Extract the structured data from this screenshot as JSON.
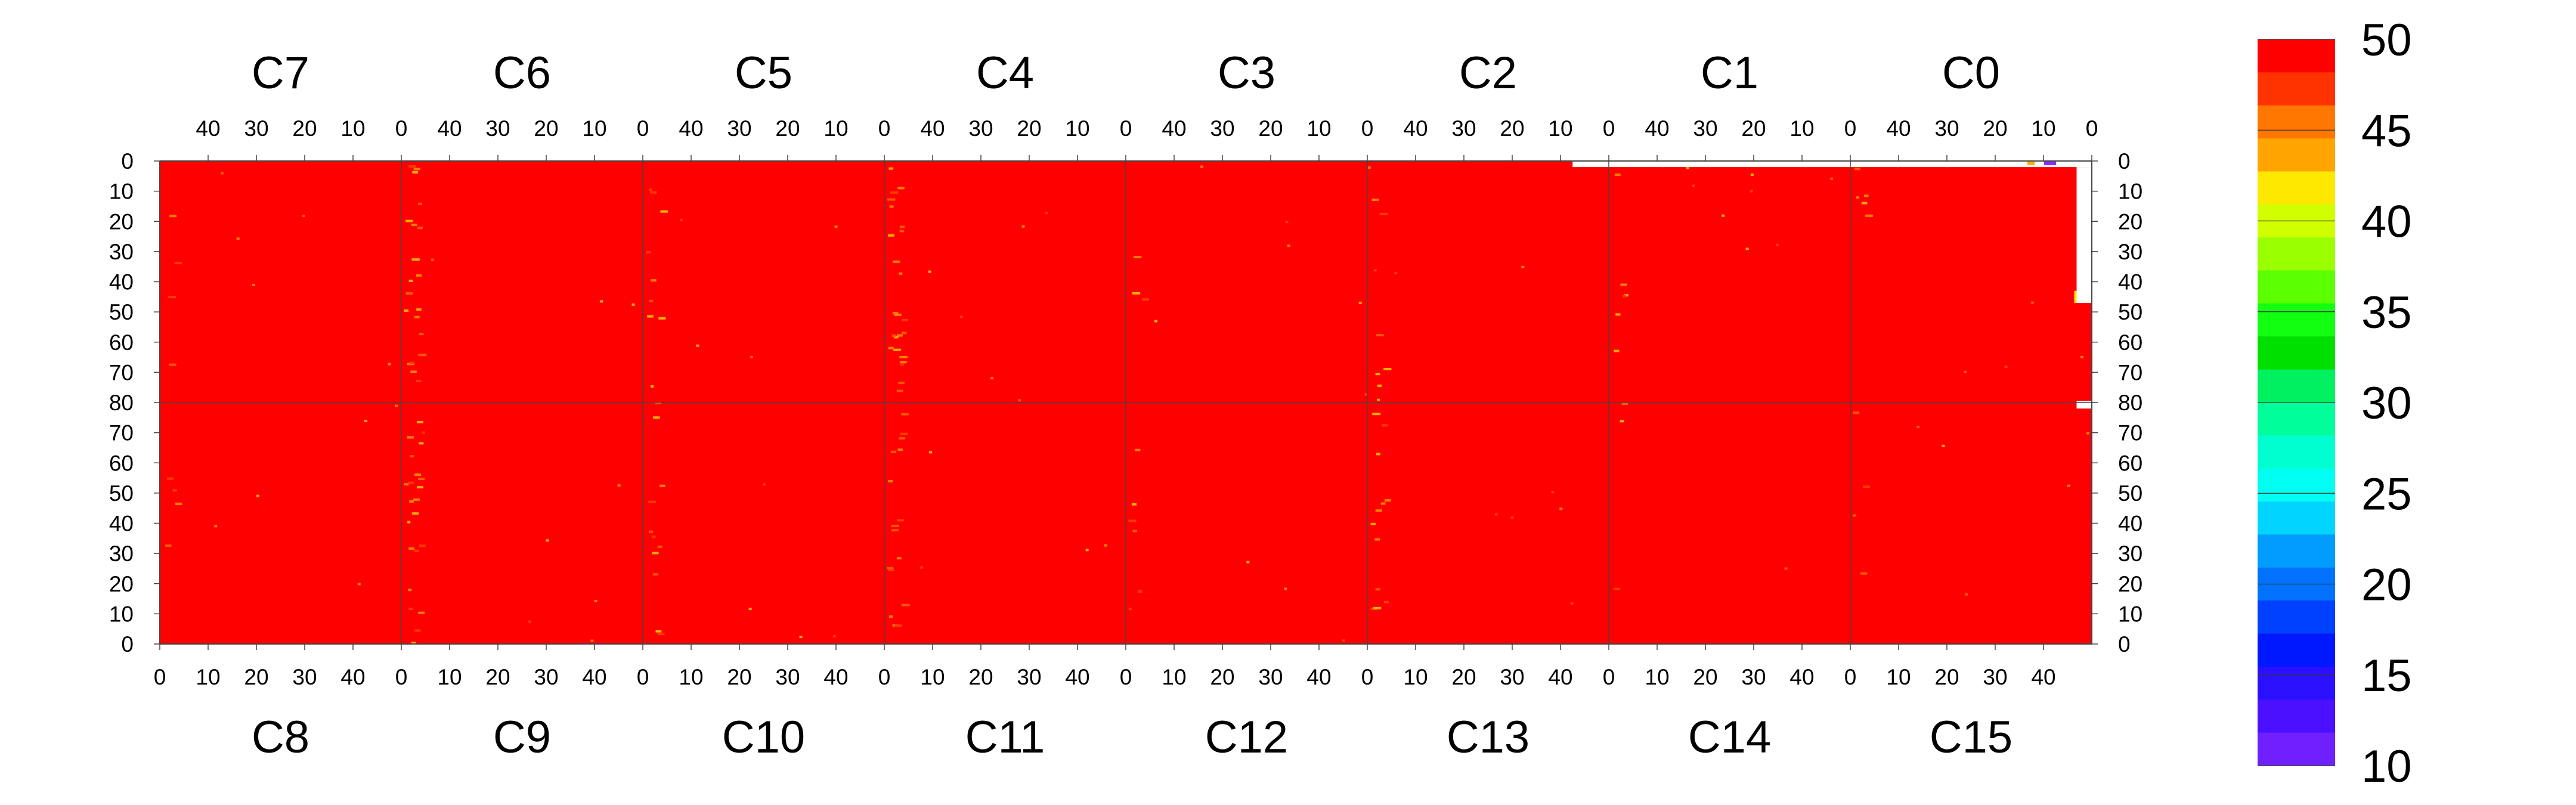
{
  "chart_data": {
    "type": "heatmap",
    "top_columns": [
      "C7",
      "C6",
      "C5",
      "C4",
      "C3",
      "C2",
      "C1",
      "C0"
    ],
    "bottom_columns": [
      "C8",
      "C9",
      "C10",
      "C11",
      "C12",
      "C13",
      "C14",
      "C15"
    ],
    "top_x_ticks": [
      "40",
      "30",
      "20",
      "10",
      "0"
    ],
    "bottom_x_ticks": [
      "0",
      "10",
      "20",
      "30",
      "40"
    ],
    "y_ticks": [
      "0",
      "10",
      "20",
      "30",
      "40",
      "50",
      "60",
      "70",
      "80",
      "70",
      "60",
      "50",
      "40",
      "30",
      "20",
      "10",
      "0"
    ],
    "column_range": [
      0,
      50
    ],
    "row_range_per_half": [
      0,
      80
    ],
    "dominant_value": 50,
    "colorbar": {
      "ticks": [
        "50",
        "45",
        "40",
        "35",
        "30",
        "25",
        "20",
        "15",
        "10"
      ],
      "range": [
        10,
        50
      ],
      "band_colors": [
        "#ff0000",
        "#ff3300",
        "#ff7700",
        "#ffa400",
        "#ffe800",
        "#d0ff00",
        "#9aff00",
        "#5aff00",
        "#12ff12",
        "#00e000",
        "#00f060",
        "#00ff9a",
        "#00ffd0",
        "#00fff2",
        "#00d4ff",
        "#009cff",
        "#0072ff",
        "#0040ff",
        "#0018ff",
        "#2a10ff",
        "#4a10ff",
        "#7020ff"
      ]
    },
    "anomalies": [
      {
        "panel": "C0",
        "note": "missing region at top edge rows 0-2 across C1 and C0"
      },
      {
        "panel": "C0",
        "note": "missing column strip near column 0, rows 2-45"
      },
      {
        "panel": "C0",
        "note": "small white cell near row 80"
      }
    ]
  }
}
